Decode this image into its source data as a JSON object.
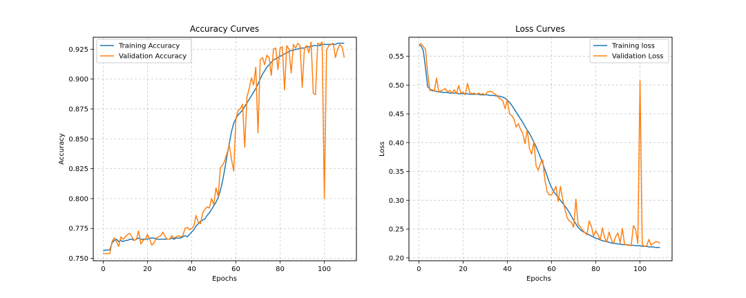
{
  "chart_data": [
    {
      "type": "line",
      "title": "Accuracy Curves",
      "xlabel": "Epochs",
      "ylabel": "Accuracy",
      "xlim": [
        -4.5,
        114.5
      ],
      "ylim": [
        0.748,
        0.935
      ],
      "xticks": [
        0,
        20,
        40,
        60,
        80,
        100
      ],
      "yticks": [
        0.75,
        0.775,
        0.8,
        0.825,
        0.85,
        0.875,
        0.9,
        0.925
      ],
      "ytick_labels": [
        "0.750",
        "0.775",
        "0.800",
        "0.825",
        "0.850",
        "0.875",
        "0.900",
        "0.925"
      ],
      "grid": true,
      "legend_position": "top-left",
      "series": [
        {
          "name": "Training Accuracy",
          "color": "#1f77b4",
          "values": [
            0.756,
            0.757,
            0.757,
            0.757,
            0.763,
            0.765,
            0.766,
            0.764,
            0.765,
            0.764,
            0.765,
            0.765,
            0.766,
            0.766,
            0.765,
            0.766,
            0.767,
            0.766,
            0.766,
            0.766,
            0.766,
            0.767,
            0.767,
            0.767,
            0.766,
            0.766,
            0.766,
            0.766,
            0.766,
            0.766,
            0.766,
            0.767,
            0.766,
            0.767,
            0.767,
            0.767,
            0.768,
            0.769,
            0.768,
            0.77,
            0.772,
            0.774,
            0.777,
            0.779,
            0.781,
            0.782,
            0.783,
            0.786,
            0.788,
            0.791,
            0.794,
            0.797,
            0.801,
            0.807,
            0.815,
            0.825,
            0.836,
            0.846,
            0.856,
            0.863,
            0.867,
            0.87,
            0.872,
            0.874,
            0.877,
            0.88,
            0.883,
            0.886,
            0.889,
            0.892,
            0.896,
            0.9,
            0.904,
            0.907,
            0.91,
            0.912,
            0.914,
            0.916,
            0.917,
            0.918,
            0.919,
            0.92,
            0.921,
            0.922,
            0.923,
            0.924,
            0.924,
            0.925,
            0.925,
            0.926,
            0.926,
            0.926,
            0.927,
            0.927,
            0.927,
            0.928,
            0.928,
            0.928,
            0.928,
            0.929,
            0.929,
            0.929,
            0.929,
            0.929,
            0.929,
            0.929,
            0.93,
            0.93,
            0.93,
            0.93
          ]
        },
        {
          "name": "Validation Accuracy",
          "color": "#ff7f0e",
          "values": [
            0.754,
            0.754,
            0.754,
            0.754,
            0.764,
            0.767,
            0.764,
            0.76,
            0.768,
            0.766,
            0.768,
            0.77,
            0.771,
            0.768,
            0.765,
            0.766,
            0.773,
            0.762,
            0.765,
            0.766,
            0.77,
            0.766,
            0.761,
            0.763,
            0.767,
            0.768,
            0.769,
            0.772,
            0.768,
            0.766,
            0.766,
            0.769,
            0.767,
            0.768,
            0.769,
            0.768,
            0.769,
            0.775,
            0.776,
            0.774,
            0.775,
            0.777,
            0.786,
            0.78,
            0.779,
            0.788,
            0.791,
            0.793,
            0.792,
            0.8,
            0.795,
            0.809,
            0.802,
            0.826,
            0.828,
            0.832,
            0.838,
            0.845,
            0.833,
            0.823,
            0.866,
            0.874,
            0.875,
            0.879,
            0.843,
            0.885,
            0.892,
            0.901,
            0.895,
            0.91,
            0.855,
            0.916,
            0.918,
            0.912,
            0.92,
            0.918,
            0.903,
            0.925,
            0.926,
            0.908,
            0.926,
            0.927,
            0.891,
            0.928,
            0.925,
            0.905,
            0.929,
            0.926,
            0.93,
            0.928,
            0.893,
            0.926,
            0.928,
            0.922,
            0.931,
            0.888,
            0.887,
            0.93,
            0.929,
            0.931,
            0.8,
            0.924,
            0.928,
            0.929,
            0.93,
            0.918,
            0.925,
            0.929,
            0.927,
            0.918
          ]
        }
      ]
    },
    {
      "type": "line",
      "title": "Loss Curves",
      "xlabel": "Epochs",
      "ylabel": "Loss",
      "xlim": [
        -4.5,
        114.5
      ],
      "ylim": [
        0.195,
        0.583
      ],
      "xticks": [
        0,
        20,
        40,
        60,
        80,
        100
      ],
      "yticks": [
        0.2,
        0.25,
        0.3,
        0.35,
        0.4,
        0.45,
        0.5,
        0.55
      ],
      "ytick_labels": [
        "0.20",
        "0.25",
        "0.30",
        "0.35",
        "0.40",
        "0.45",
        "0.50",
        "0.55"
      ],
      "grid": true,
      "legend_position": "top-right",
      "series": [
        {
          "name": "Training loss",
          "color": "#1f77b4",
          "values": [
            0.57,
            0.568,
            0.56,
            0.53,
            0.497,
            0.493,
            0.49,
            0.49,
            0.489,
            0.488,
            0.488,
            0.487,
            0.487,
            0.487,
            0.486,
            0.486,
            0.486,
            0.486,
            0.485,
            0.485,
            0.485,
            0.485,
            0.485,
            0.484,
            0.484,
            0.484,
            0.484,
            0.484,
            0.483,
            0.483,
            0.483,
            0.483,
            0.482,
            0.482,
            0.482,
            0.481,
            0.481,
            0.48,
            0.479,
            0.477,
            0.474,
            0.47,
            0.465,
            0.459,
            0.453,
            0.447,
            0.441,
            0.435,
            0.428,
            0.422,
            0.416,
            0.409,
            0.401,
            0.393,
            0.384,
            0.374,
            0.364,
            0.353,
            0.342,
            0.331,
            0.322,
            0.315,
            0.31,
            0.305,
            0.3,
            0.295,
            0.29,
            0.285,
            0.279,
            0.272,
            0.265,
            0.259,
            0.253,
            0.249,
            0.246,
            0.244,
            0.242,
            0.24,
            0.238,
            0.236,
            0.234,
            0.233,
            0.231,
            0.23,
            0.229,
            0.228,
            0.227,
            0.226,
            0.225,
            0.225,
            0.224,
            0.224,
            0.223,
            0.223,
            0.223,
            0.222,
            0.222,
            0.222,
            0.221,
            0.221,
            0.221,
            0.22,
            0.22,
            0.22,
            0.219,
            0.219,
            0.219,
            0.218,
            0.218,
            0.218
          ]
        },
        {
          "name": "Validation Loss",
          "color": "#ff7f0e",
          "values": [
            0.57,
            0.572,
            0.567,
            0.562,
            0.52,
            0.49,
            0.492,
            0.49,
            0.512,
            0.488,
            0.49,
            0.492,
            0.494,
            0.488,
            0.491,
            0.486,
            0.492,
            0.485,
            0.499,
            0.486,
            0.488,
            0.483,
            0.503,
            0.487,
            0.485,
            0.486,
            0.484,
            0.486,
            0.484,
            0.485,
            0.483,
            0.488,
            0.489,
            0.489,
            0.485,
            0.483,
            0.478,
            0.476,
            0.472,
            0.459,
            0.475,
            0.45,
            0.447,
            0.441,
            0.427,
            0.433,
            0.423,
            0.416,
            0.398,
            0.423,
            0.39,
            0.38,
            0.402,
            0.36,
            0.352,
            0.365,
            0.37,
            0.335,
            0.315,
            0.309,
            0.31,
            0.316,
            0.324,
            0.298,
            0.324,
            0.302,
            0.285,
            0.27,
            0.264,
            0.262,
            0.253,
            0.302,
            0.258,
            0.254,
            0.248,
            0.244,
            0.24,
            0.264,
            0.255,
            0.238,
            0.247,
            0.24,
            0.231,
            0.252,
            0.235,
            0.228,
            0.245,
            0.232,
            0.225,
            0.237,
            0.243,
            0.226,
            0.251,
            0.224,
            0.222,
            0.223,
            0.221,
            0.256,
            0.25,
            0.225,
            0.508,
            0.223,
            0.22,
            0.221,
            0.232,
            0.222,
            0.225,
            0.228,
            0.228,
            0.225
          ]
        }
      ]
    }
  ]
}
